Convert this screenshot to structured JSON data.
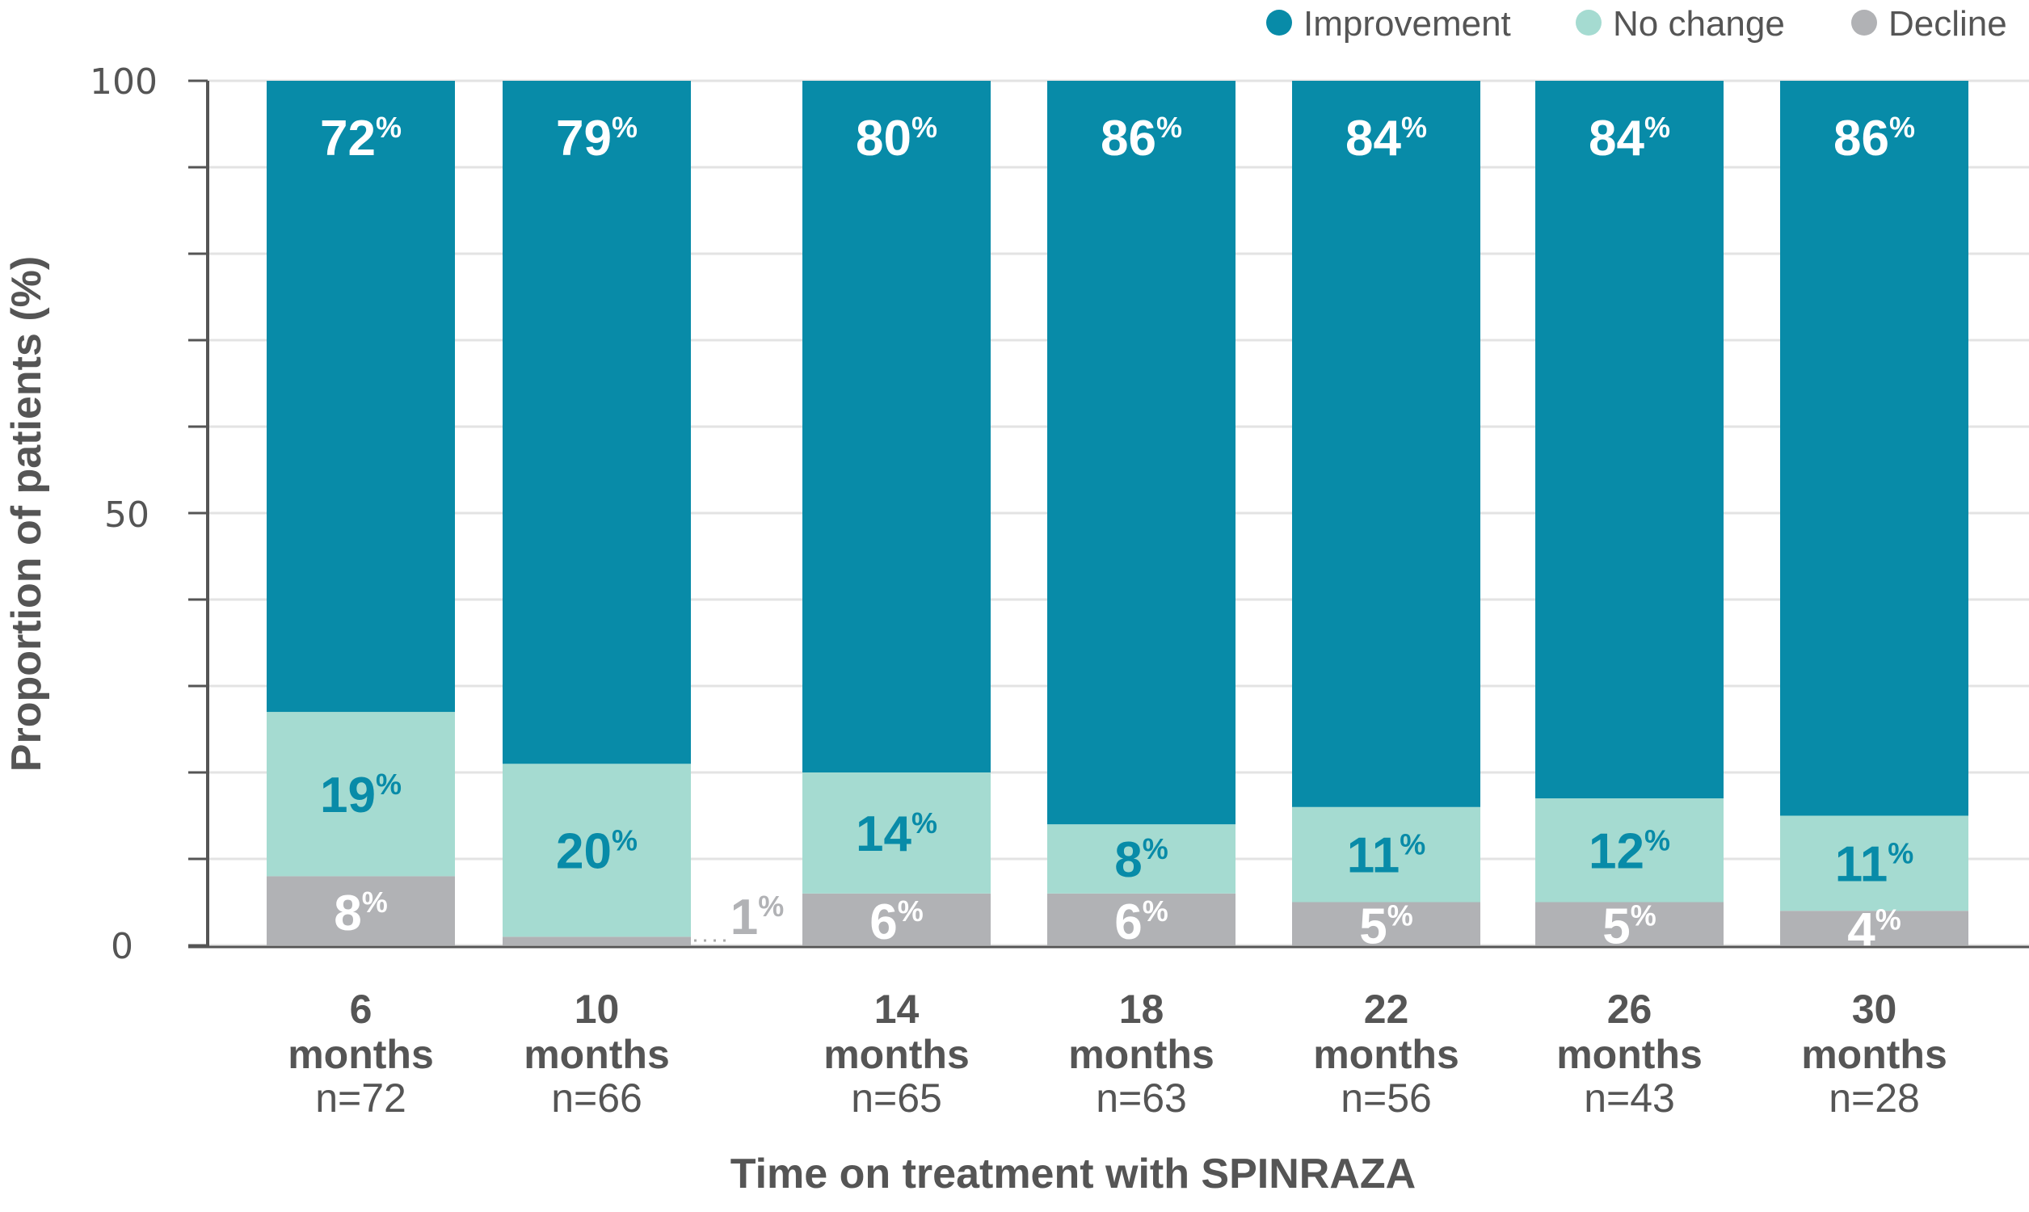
{
  "chart_data": {
    "type": "bar",
    "stacked": true,
    "categories": [
      "6 months",
      "10 months",
      "14 months",
      "18 months",
      "22 months",
      "26 months",
      "30 months"
    ],
    "category_lines": [
      {
        "number": "6",
        "unit": "months",
        "n": "n=72"
      },
      {
        "number": "10",
        "unit": "months",
        "n": "n=66"
      },
      {
        "number": "14",
        "unit": "months",
        "n": "n=65"
      },
      {
        "number": "18",
        "unit": "months",
        "n": "n=63"
      },
      {
        "number": "22",
        "unit": "months",
        "n": "n=56"
      },
      {
        "number": "26",
        "unit": "months",
        "n": "n=43"
      },
      {
        "number": "30",
        "unit": "months",
        "n": "n=28"
      }
    ],
    "series": [
      {
        "name": "Decline",
        "color": "#b1b2b5",
        "values": [
          8,
          1,
          6,
          6,
          5,
          5,
          4
        ]
      },
      {
        "name": "No change",
        "color": "#a5dbd1",
        "values": [
          19,
          20,
          14,
          8,
          11,
          12,
          11
        ]
      },
      {
        "name": "Improvement",
        "color": "#088ba8",
        "values": [
          72,
          79,
          80,
          86,
          84,
          84,
          86
        ]
      }
    ],
    "value_suffix": "%",
    "xlabel": "Time on treatment with SPINRAZA",
    "ylabel": "Proportion of patients (%)",
    "ylim": [
      0,
      100
    ],
    "yticks": [
      "0",
      "50",
      "100"
    ],
    "grid": true,
    "legend_position": "top-right"
  }
}
